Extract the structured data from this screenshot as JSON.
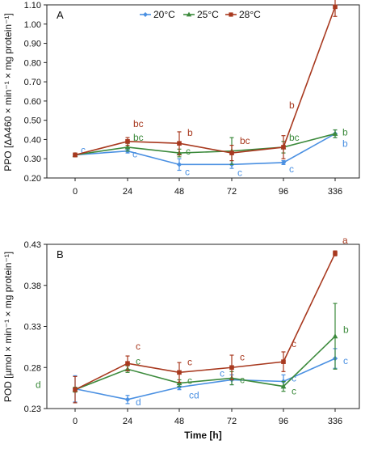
{
  "chart_data": [
    {
      "type": "line",
      "panel_label": "A",
      "ylabel": "PPO [ΔA460 × min⁻¹ × mg protein⁻¹]",
      "xlabel": "",
      "categories": [
        "0",
        "24",
        "48",
        "72",
        "96",
        "336"
      ],
      "ylim": [
        0.2,
        1.1
      ],
      "yticks": [
        "0.20",
        "0.30",
        "0.40",
        "0.50",
        "0.60",
        "0.70",
        "0.80",
        "0.90",
        "1.00",
        "1.10"
      ],
      "ytick_values": [
        0.2,
        0.3,
        0.4,
        0.5,
        0.6,
        0.7,
        0.8,
        0.9,
        1.0,
        1.1
      ],
      "legend_position": "top-center",
      "series": [
        {
          "name": "20°C",
          "color": "#4a90e2",
          "marker": "diamond",
          "values": [
            0.32,
            0.34,
            0.27,
            0.27,
            0.28,
            0.43
          ],
          "errors": [
            0.01,
            0.01,
            0.03,
            0.02,
            0.01,
            0.02
          ],
          "labels": [
            "c",
            "c",
            "c",
            "c",
            "c",
            "b"
          ]
        },
        {
          "name": "25°C",
          "color": "#3c8a3c",
          "marker": "triangle",
          "values": [
            0.32,
            0.36,
            0.33,
            0.34,
            0.36,
            0.43
          ],
          "errors": [
            0.01,
            0.02,
            0.02,
            0.07,
            0.03,
            0.02
          ],
          "labels": [
            "",
            "bc",
            "c",
            "",
            "bc",
            "b"
          ]
        },
        {
          "name": "28°C",
          "color": "#a8391f",
          "marker": "square",
          "values": [
            0.32,
            0.39,
            0.38,
            0.33,
            0.36,
            1.09
          ],
          "errors": [
            0.01,
            0.02,
            0.06,
            0.04,
            0.06,
            0.05
          ],
          "labels": [
            "",
            "bc",
            "b",
            "bc",
            "b",
            "a"
          ]
        }
      ]
    },
    {
      "type": "line",
      "panel_label": "B",
      "ylabel": "POD [µmol × min⁻¹ × mg protein⁻¹]",
      "xlabel": "Time [h]",
      "categories": [
        "0",
        "24",
        "48",
        "72",
        "96",
        "336"
      ],
      "ylim": [
        0.23,
        0.43
      ],
      "yticks": [
        "0.23",
        "0.28",
        "0.33",
        "0.38",
        "0.43"
      ],
      "ytick_values": [
        0.23,
        0.28,
        0.33,
        0.38,
        0.43
      ],
      "series": [
        {
          "name": "20°C",
          "color": "#4a90e2",
          "marker": "diamond",
          "values": [
            0.254,
            0.241,
            0.256,
            0.265,
            0.263,
            0.291
          ],
          "errors": [
            0.016,
            0.005,
            0.003,
            0.006,
            0.008,
            0.012
          ],
          "labels": [
            "",
            "d",
            "cd",
            "c",
            "c",
            "c"
          ]
        },
        {
          "name": "25°C",
          "color": "#3c8a3c",
          "marker": "triangle",
          "values": [
            0.253,
            0.278,
            0.261,
            0.267,
            0.257,
            0.318
          ],
          "errors": [
            0.003,
            0.004,
            0.004,
            0.008,
            0.006,
            0.04
          ],
          "labels": [
            "d",
            "c",
            "c",
            "c",
            "c",
            "b"
          ]
        },
        {
          "name": "28°C",
          "color": "#a8391f",
          "marker": "square",
          "values": [
            0.253,
            0.285,
            0.274,
            0.28,
            0.287,
            0.419
          ],
          "errors": [
            0.016,
            0.009,
            0.012,
            0.015,
            0.012,
            0.003
          ],
          "labels": [
            "",
            "c",
            "c",
            "c",
            "c",
            "a"
          ]
        }
      ]
    }
  ]
}
